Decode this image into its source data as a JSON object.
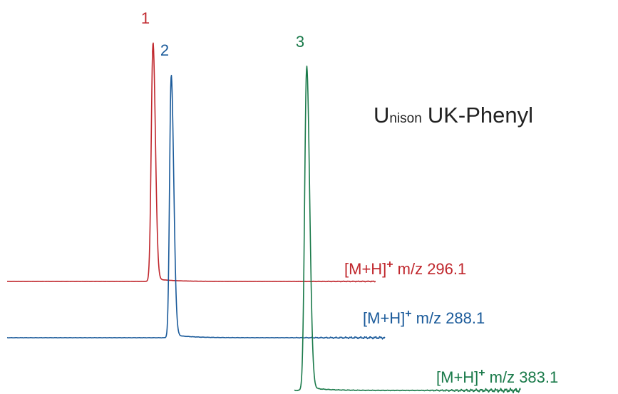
{
  "chart_data": {
    "type": "line",
    "title": "",
    "xlabel": "",
    "ylabel": "",
    "product": {
      "brand": "Unison",
      "name": "UK-Phenyl"
    },
    "series": [
      {
        "name": "[M+H]+ m/z 296.1",
        "ion_prefix": "[M+H]",
        "charge": "+",
        "mz_text": "m/z 296.1",
        "color": "#c0272d",
        "peak_label": "1",
        "peak_rt": 0.465,
        "peak_height": 1.0
      },
      {
        "name": "[M+H]+ m/z 288.1",
        "ion_prefix": "[M+H]",
        "charge": "+",
        "mz_text": "m/z 288.1",
        "color": "#1a5a9a",
        "peak_label": "2",
        "peak_rt": 0.523,
        "peak_height": 1.0
      },
      {
        "name": "[M+H]+ m/z 383.1",
        "ion_prefix": "[M+H]",
        "charge": "+",
        "mz_text": "m/z 383.1",
        "color": "#1a7a4a",
        "peak_label": "3",
        "peak_rt": 0.955,
        "peak_height": 1.0
      }
    ]
  }
}
